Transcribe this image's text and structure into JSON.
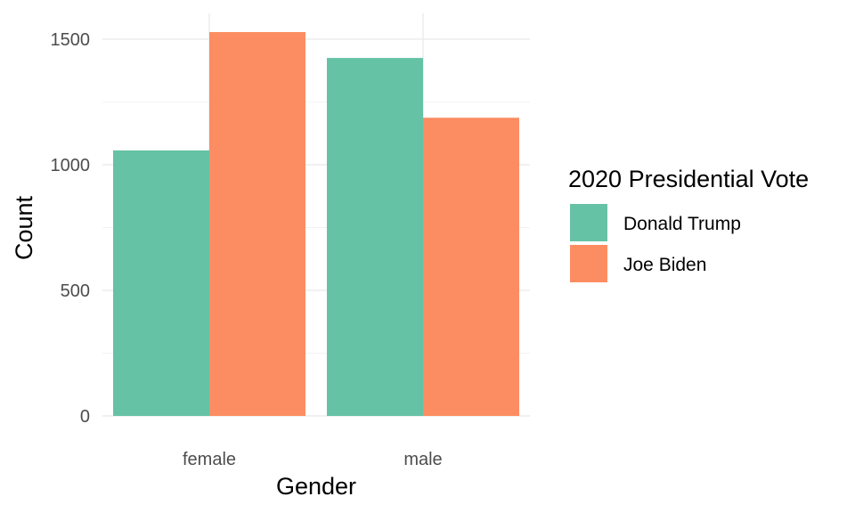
{
  "chart_data": {
    "type": "bar",
    "title": "",
    "xlabel": "Gender",
    "ylabel": "Count",
    "categories": [
      "female",
      "male"
    ],
    "series": [
      {
        "name": "Donald Trump",
        "values": [
          1057,
          1425
        ],
        "color": "#66c2a5"
      },
      {
        "name": "Joe Biden",
        "values": [
          1528,
          1187
        ],
        "color": "#fc8d62"
      }
    ],
    "ylim": [
      0,
      1528
    ],
    "yticks": [
      0,
      500,
      1000,
      1500
    ],
    "yticks_labels": [
      "0",
      "500",
      "1000",
      "1500"
    ],
    "grid": true,
    "legend": {
      "title": "2020 Presidential Vote",
      "placement": "right"
    }
  }
}
